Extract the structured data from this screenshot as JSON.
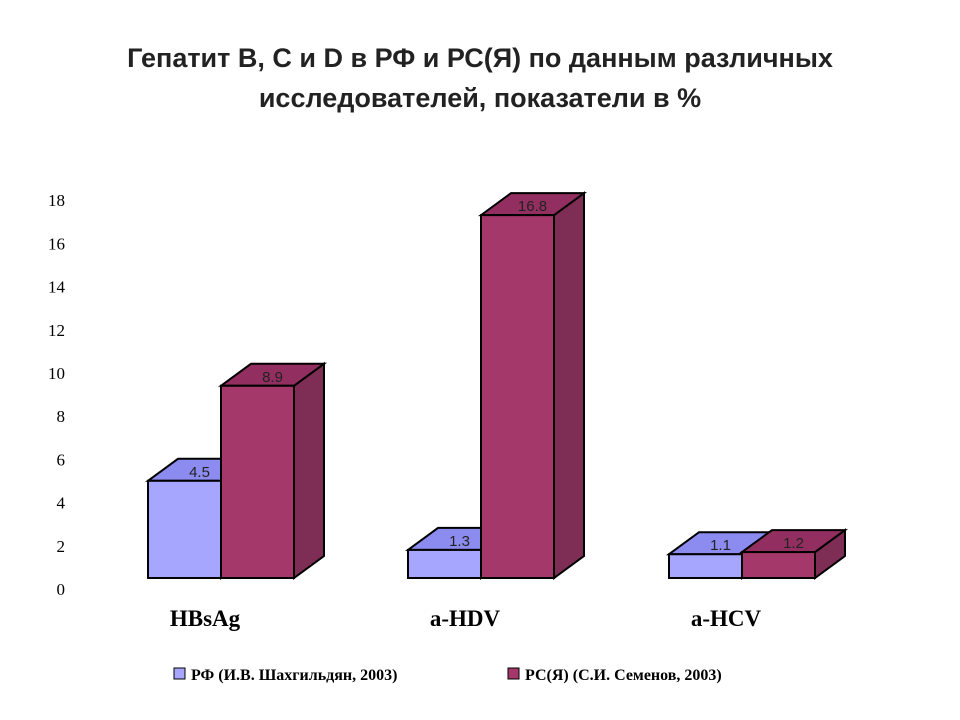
{
  "slide": {
    "title_lines": [
      "Гепатит B, C и D в РФ и РС(Я) по данным различных",
      "исследователей, показатели в %"
    ]
  },
  "chart_data": {
    "type": "bar",
    "categories": [
      "HBsAg",
      "a-HDV",
      "a-HCV"
    ],
    "series": [
      {
        "name": "РФ (И.В. Шахгильдян, 2003)",
        "values": [
          4.5,
          1.3,
          1.1
        ],
        "color": "#A6A6FF",
        "side_color": "#6F6FC9",
        "top_color": "#8C8CF0"
      },
      {
        "name": "РС(Я) (С.И. Семенов, 2003)",
        "values": [
          8.9,
          16.8,
          1.2
        ],
        "color": "#A5386A",
        "side_color": "#7E2D54",
        "top_color": "#922F60"
      }
    ],
    "y_ticks": [
      "0",
      "2",
      "4",
      "6",
      "8",
      "10",
      "12",
      "14",
      "16",
      "18"
    ],
    "ylim": [
      0,
      18
    ],
    "grid": false,
    "legend_position": "bottom",
    "bar_style": "3d"
  }
}
